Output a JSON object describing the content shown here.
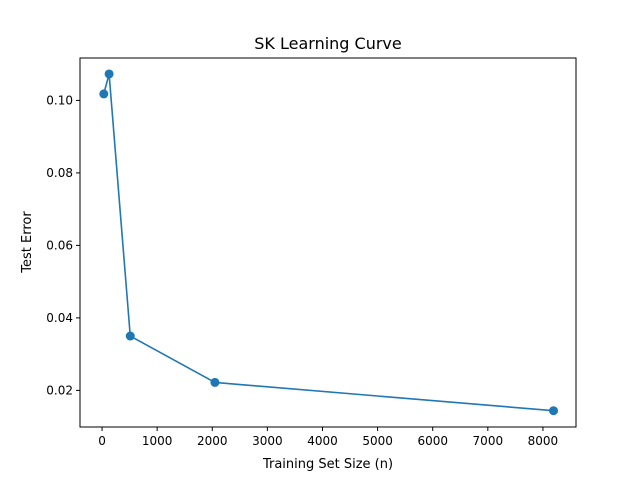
{
  "chart_data": {
    "type": "line",
    "title": "SK Learning Curve",
    "xlabel": "Training Set Size (n)",
    "ylabel": "Test Error",
    "xlim": [
      -400,
      8600
    ],
    "ylim": [
      0.0099,
      0.1117
    ],
    "xticks": [
      0,
      1000,
      2000,
      3000,
      4000,
      5000,
      6000,
      7000,
      8000
    ],
    "xtick_labels": [
      "0",
      "1000",
      "2000",
      "3000",
      "4000",
      "5000",
      "6000",
      "7000",
      "8000"
    ],
    "yticks": [
      0.02,
      0.04,
      0.06,
      0.08,
      0.1
    ],
    "ytick_labels": [
      "0.02",
      "0.04",
      "0.06",
      "0.08",
      "0.10"
    ],
    "grid": false,
    "series": [
      {
        "color": "#1f77b4",
        "marker": "circle",
        "x": [
          32,
          128,
          512,
          2048,
          8192
        ],
        "y": [
          0.1018,
          0.1073,
          0.035,
          0.0222,
          0.0144
        ]
      }
    ]
  }
}
